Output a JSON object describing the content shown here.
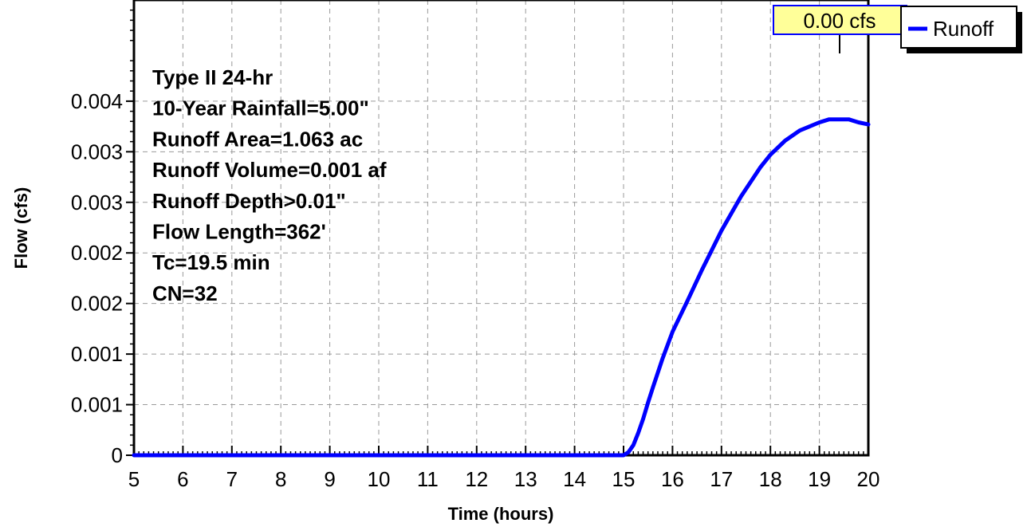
{
  "chart_data": {
    "type": "line",
    "title": "",
    "xlabel": "Time  (hours)",
    "ylabel": "Flow  (cfs)",
    "xlim": [
      5,
      20
    ],
    "ylim": [
      0,
      0.0045
    ],
    "x_ticks": [
      "5",
      "6",
      "7",
      "8",
      "9",
      "10",
      "11",
      "12",
      "13",
      "14",
      "15",
      "16",
      "17",
      "18",
      "19",
      "20"
    ],
    "y_ticks": [
      {
        "value": 0,
        "label": "0"
      },
      {
        "value": 0.0005,
        "label": "0.001"
      },
      {
        "value": 0.001,
        "label": "0.001"
      },
      {
        "value": 0.0015,
        "label": "0.002"
      },
      {
        "value": 0.002,
        "label": "0.002"
      },
      {
        "value": 0.0025,
        "label": "0.003"
      },
      {
        "value": 0.003,
        "label": "0.003"
      },
      {
        "value": 0.0035,
        "label": "0.004"
      }
    ],
    "grid": true,
    "annotations": [
      "Type II 24-hr",
      "10-Year Rainfall=5.00\"",
      "Runoff Area=1.063 ac",
      "Runoff Volume=0.001 af",
      "Runoff Depth>0.01\"",
      "Flow Length=362'",
      "Tc=19.5 min",
      "CN=32"
    ],
    "peak_label": "0.00 cfs",
    "legend_position": "top-right",
    "series": [
      {
        "name": "Runoff",
        "color": "#0000ff",
        "x": [
          5,
          14.0,
          15.0,
          15.1,
          15.2,
          15.3,
          15.4,
          15.5,
          15.6,
          15.8,
          16.0,
          16.3,
          16.6,
          17.0,
          17.4,
          17.8,
          18.0,
          18.3,
          18.6,
          19.0,
          19.2,
          19.4,
          19.6,
          19.8,
          20.0
        ],
        "y": [
          0,
          0,
          0,
          3e-05,
          0.0001,
          0.00022,
          0.00036,
          0.00052,
          0.00067,
          0.00096,
          0.00122,
          0.00152,
          0.00183,
          0.00222,
          0.00256,
          0.00285,
          0.00297,
          0.00311,
          0.00321,
          0.00329,
          0.00332,
          0.00332,
          0.00332,
          0.00329,
          0.00327
        ]
      }
    ]
  }
}
